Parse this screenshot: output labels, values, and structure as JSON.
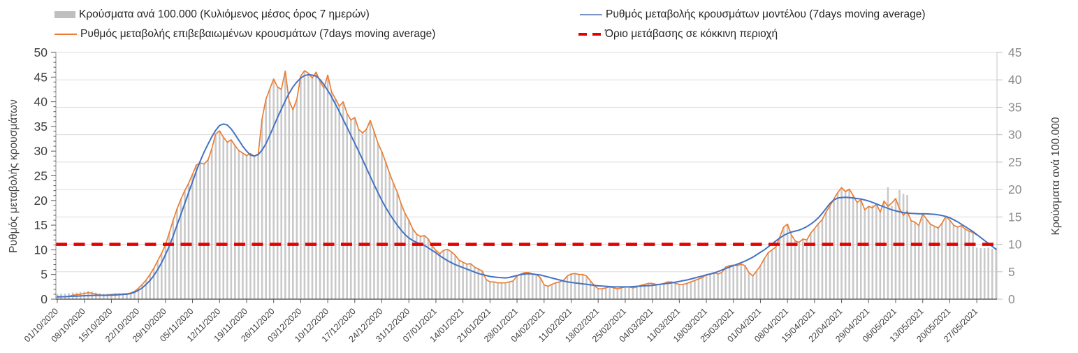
{
  "legend_note": "legend labels are bound from chart_data series names",
  "colors": {
    "bar": "#c9c9c9",
    "bar_legend": "#bfbfbf",
    "confirmed_line": "#ED7D31",
    "model_line": "#4472C4",
    "threshold_line": "#e60000",
    "grid": "#dcdcdc",
    "axis_left_line": "#8c8c8c",
    "axis_right_line": "#c6c6c6",
    "axis_bottom_line": "#404040",
    "tick_dark": "#595959",
    "tick_gray": "#bfbfbf",
    "text_dark": "#404040",
    "text_gray": "#8c8c8c",
    "legend_text": "#262626"
  },
  "chart_data": {
    "type": "bar+line combo, daily data",
    "x_frequency": "daily",
    "x_start": "01/10/2020",
    "x_tick_every_days": 7,
    "x_tick_labels": [
      "01/10/2020",
      "08/10/2020",
      "15/10/2020",
      "22/10/2020",
      "29/10/2020",
      "05/11/2020",
      "12/11/2020",
      "19/11/2020",
      "26/11/2020",
      "03/12/2020",
      "10/12/2020",
      "17/12/2020",
      "24/12/2020",
      "31/12/2020",
      "07/01/2021",
      "14/01/2021",
      "21/01/2021",
      "28/01/2021",
      "04/02/2021",
      "11/02/2021",
      "18/02/2021",
      "25/02/2021",
      "04/03/2021",
      "11/03/2021",
      "18/03/2021",
      "25/03/2021",
      "01/04/2021",
      "08/04/2021",
      "15/04/2021",
      "22/04/2021",
      "29/04/2021",
      "06/05/2021",
      "13/05/2021",
      "20/05/2021",
      "27/05/2021"
    ],
    "left_axis": {
      "label": "Ρυθμός μεταβολής κρουσμάτων",
      "min": 0,
      "max": 50,
      "tick_step": 5,
      "ticks": [
        0,
        5,
        10,
        15,
        20,
        25,
        30,
        35,
        40,
        45,
        50
      ]
    },
    "right_axis": {
      "label": "Κρούσματα ανά 100.000",
      "min": 0,
      "max": 45,
      "tick_step": 5,
      "ticks": [
        0,
        5,
        10,
        15,
        20,
        25,
        30,
        35,
        40,
        45
      ]
    },
    "threshold": {
      "label": "Όριο μετάβασης σε κόκκινη περιοχή",
      "axis": "right",
      "value": 10
    },
    "series": [
      {
        "name": "Κρούσματα ανά 100.000 (Κυλιόμενος μέσος όρος 7 ημερών)",
        "type": "bar",
        "axis": "right",
        "values": [
          0.9,
          1.0,
          1.0,
          1.1,
          1.2,
          1.2,
          1.3,
          1.4,
          1.5,
          1.4,
          1.2,
          1.1,
          1.0,
          1.0,
          1.0,
          1.1,
          1.1,
          1.1,
          1.1,
          1.2,
          1.5,
          2.0,
          2.7,
          3.5,
          4.5,
          5.7,
          7.0,
          8.4,
          9.9,
          12.1,
          14.4,
          16.5,
          18.3,
          19.8,
          21.1,
          22.8,
          24.5,
          24.8,
          24.7,
          25.4,
          27.4,
          30.1,
          30.7,
          29.5,
          28.6,
          29.1,
          28.0,
          27.1,
          26.6,
          26.2,
          26.5,
          26.1,
          26.4,
          32.8,
          36.4,
          38.3,
          40.1,
          38.7,
          38.2,
          41.5,
          36.2,
          34.6,
          36.4,
          40.7,
          41.6,
          41.2,
          40.3,
          41.4,
          39.7,
          38.5,
          40.9,
          37.8,
          36.5,
          35.2,
          36.0,
          33.8,
          32.7,
          33.1,
          31.0,
          30.3,
          31.0,
          32.6,
          30.6,
          28.4,
          26.9,
          25.0,
          23.0,
          21.2,
          19.5,
          17.4,
          15.7,
          14.4,
          12.8,
          11.9,
          11.4,
          11.6,
          11.0,
          9.7,
          8.9,
          8.3,
          8.9,
          9.1,
          8.6,
          8.0,
          7.1,
          6.8,
          6.4,
          6.5,
          5.9,
          5.5,
          5.1,
          3.6,
          3.2,
          3.2,
          3.0,
          3.0,
          3.0,
          3.2,
          3.3,
          4.2,
          4.6,
          4.9,
          4.9,
          4.6,
          4.5,
          4.0,
          2.6,
          2.3,
          2.7,
          3.0,
          3.2,
          3.4,
          4.2,
          4.6,
          4.7,
          4.5,
          4.5,
          4.2,
          3.3,
          2.5,
          1.9,
          1.9,
          2.1,
          2.3,
          2.1,
          1.9,
          2.1,
          2.3,
          2.3,
          2.1,
          2.3,
          2.5,
          2.7,
          2.9,
          2.9,
          2.7,
          2.7,
          2.9,
          3.2,
          3.2,
          2.9,
          2.7,
          2.7,
          2.9,
          3.2,
          3.4,
          3.7,
          4.0,
          4.5,
          4.6,
          4.9,
          4.6,
          4.9,
          5.9,
          6.1,
          6.2,
          6.1,
          6.4,
          6.1,
          4.9,
          4.2,
          5.1,
          6.1,
          7.4,
          8.5,
          9.0,
          9.5,
          11.3,
          13.1,
          13.7,
          11.7,
          10.6,
          10.4,
          11.0,
          10.8,
          12.1,
          12.9,
          13.8,
          14.5,
          15.9,
          17.0,
          18.3,
          19.4,
          20.3,
          19.6,
          20.1,
          18.9,
          17.6,
          18.1,
          16.3,
          16.9,
          17.1,
          17.4,
          15.8,
          17.9,
          20.4,
          17.0,
          18.4,
          19.9,
          19.2,
          19.0,
          14.3,
          14.0,
          13.4,
          15.6,
          14.6,
          13.7,
          13.3,
          13.0,
          13.9,
          15.1,
          14.4,
          13.5,
          13.1,
          13.4,
          12.8,
          12.4,
          12.1,
          9.4,
          9.3,
          9.3,
          9.4,
          9.2,
          9.3
        ]
      },
      {
        "name": "Ρυθμός μεταβολής επιβεβαιωμένων κρουσμάτων (7days moving average)",
        "type": "line",
        "axis": "left",
        "values": [
          0.4,
          0.45,
          0.5,
          0.6,
          0.8,
          0.9,
          1.0,
          1.15,
          1.3,
          1.2,
          1.0,
          0.85,
          0.75,
          0.85,
          0.95,
          1.0,
          1.0,
          1.05,
          1.1,
          1.25,
          1.6,
          2.2,
          3.0,
          3.9,
          5.0,
          6.3,
          7.8,
          9.3,
          11.0,
          13.5,
          16.0,
          18.3,
          20.3,
          22.0,
          23.5,
          25.3,
          27.2,
          27.6,
          27.4,
          28.2,
          30.5,
          33.5,
          34.1,
          32.8,
          31.8,
          32.3,
          31.1,
          30.1,
          29.6,
          29.1,
          29.5,
          29.0,
          29.4,
          36.5,
          40.5,
          42.6,
          44.6,
          43.0,
          42.5,
          46.2,
          40.2,
          38.4,
          40.5,
          45.2,
          46.3,
          45.8,
          44.8,
          46.0,
          44.1,
          42.8,
          45.4,
          42.0,
          40.6,
          39.1,
          40.0,
          37.6,
          36.3,
          36.8,
          34.4,
          33.7,
          34.4,
          36.2,
          34.0,
          31.6,
          29.9,
          27.8,
          25.5,
          23.5,
          21.7,
          19.3,
          17.4,
          16.0,
          14.2,
          13.2,
          12.7,
          12.9,
          12.2,
          10.8,
          9.9,
          9.2,
          9.9,
          10.1,
          9.6,
          8.9,
          7.9,
          7.5,
          7.1,
          7.2,
          6.5,
          6.1,
          5.7,
          4.0,
          3.5,
          3.5,
          3.3,
          3.3,
          3.3,
          3.5,
          3.7,
          4.7,
          5.1,
          5.4,
          5.4,
          5.1,
          5.0,
          4.4,
          2.9,
          2.6,
          3.0,
          3.3,
          3.5,
          3.8,
          4.7,
          5.1,
          5.2,
          5.0,
          5.0,
          4.7,
          3.7,
          2.8,
          2.1,
          2.1,
          2.3,
          2.5,
          2.3,
          2.1,
          2.3,
          2.5,
          2.5,
          2.3,
          2.5,
          2.8,
          3.0,
          3.2,
          3.2,
          3.0,
          3.0,
          3.2,
          3.5,
          3.5,
          3.2,
          3.0,
          3.0,
          3.2,
          3.5,
          3.8,
          4.1,
          4.4,
          5.0,
          5.1,
          5.4,
          5.1,
          5.4,
          6.5,
          6.8,
          6.9,
          6.8,
          7.1,
          6.8,
          5.4,
          4.7,
          5.7,
          6.8,
          8.2,
          9.4,
          10.0,
          10.6,
          12.6,
          14.6,
          15.2,
          13.0,
          11.8,
          11.5,
          12.2,
          12.0,
          13.4,
          14.3,
          15.3,
          16.1,
          17.7,
          18.9,
          20.3,
          21.6,
          22.6,
          21.8,
          22.3,
          21.0,
          19.6,
          20.1,
          18.1,
          18.8,
          18.5,
          19.3,
          17.6,
          19.9,
          18.8,
          19.5,
          20.4,
          18.3,
          17.0,
          17.8,
          15.9,
          15.6,
          14.9,
          17.3,
          16.2,
          15.2,
          14.8,
          14.4,
          15.4,
          16.8,
          16.0,
          15.0,
          14.6,
          14.9,
          14.2,
          13.8,
          13.5,
          13.0,
          null,
          null,
          null,
          null,
          null
        ]
      },
      {
        "name": "Ρυθμός μεταβολής κρουσμάτων μοντέλου (7days moving average)",
        "type": "line",
        "axis": "left",
        "values": [
          0.5,
          0.5,
          0.5,
          0.55,
          0.6,
          0.6,
          0.65,
          0.7,
          0.72,
          0.75,
          0.78,
          0.8,
          0.8,
          0.8,
          0.82,
          0.85,
          0.9,
          0.95,
          1.0,
          1.15,
          1.4,
          1.8,
          2.3,
          3.0,
          3.8,
          4.8,
          6.0,
          7.4,
          9.0,
          10.8,
          12.8,
          15.0,
          17.2,
          19.4,
          21.6,
          23.8,
          26.0,
          28.0,
          29.8,
          31.4,
          32.9,
          34.2,
          35.2,
          35.5,
          35.3,
          34.5,
          33.4,
          32.2,
          31.0,
          30.0,
          29.2,
          29.0,
          29.3,
          30.2,
          31.5,
          33.2,
          35.0,
          36.8,
          38.5,
          40.2,
          41.7,
          43.0,
          44.0,
          44.8,
          45.3,
          45.5,
          45.4,
          45.2,
          44.5,
          43.5,
          42.3,
          41.0,
          39.5,
          38.0,
          36.4,
          34.8,
          33.2,
          31.6,
          30.0,
          28.3,
          26.6,
          24.9,
          23.2,
          21.6,
          20.0,
          18.6,
          17.3,
          16.1,
          15.0,
          14.0,
          13.1,
          12.4,
          11.9,
          11.5,
          11.2,
          10.9,
          10.4,
          9.9,
          9.4,
          8.8,
          8.3,
          7.8,
          7.4,
          7.0,
          6.7,
          6.4,
          6.1,
          5.8,
          5.5,
          5.2,
          5.0,
          4.8,
          4.6,
          4.5,
          4.4,
          4.35,
          4.3,
          4.4,
          4.6,
          4.8,
          5.0,
          5.1,
          5.15,
          5.1,
          5.0,
          4.9,
          4.7,
          4.5,
          4.3,
          4.1,
          3.9,
          3.7,
          3.5,
          3.4,
          3.3,
          3.2,
          3.1,
          3.0,
          2.9,
          2.8,
          2.7,
          2.65,
          2.6,
          2.55,
          2.5,
          2.5,
          2.5,
          2.5,
          2.5,
          2.55,
          2.6,
          2.65,
          2.7,
          2.75,
          2.8,
          2.9,
          3.0,
          3.1,
          3.2,
          3.3,
          3.45,
          3.6,
          3.75,
          3.9,
          4.1,
          4.3,
          4.5,
          4.7,
          4.9,
          5.1,
          5.3,
          5.6,
          5.9,
          6.2,
          6.5,
          6.8,
          7.1,
          7.4,
          7.7,
          8.1,
          8.5,
          9.0,
          9.5,
          10.0,
          10.6,
          11.2,
          11.8,
          12.4,
          12.9,
          13.3,
          13.6,
          13.8,
          14.0,
          14.3,
          14.7,
          15.2,
          15.8,
          16.5,
          17.4,
          18.4,
          19.4,
          20.1,
          20.5,
          20.6,
          20.65,
          20.6,
          20.5,
          20.4,
          20.3,
          20.1,
          19.9,
          19.6,
          19.3,
          19.0,
          18.7,
          18.4,
          18.1,
          17.9,
          17.7,
          17.55,
          17.45,
          17.4,
          17.35,
          17.3,
          17.3,
          17.3,
          17.25,
          17.2,
          17.1,
          16.95,
          16.75,
          16.5,
          16.1,
          15.7,
          15.2,
          14.7,
          14.2,
          13.7,
          13.1,
          12.5,
          11.9,
          11.3,
          10.7,
          10.1
        ]
      }
    ]
  }
}
